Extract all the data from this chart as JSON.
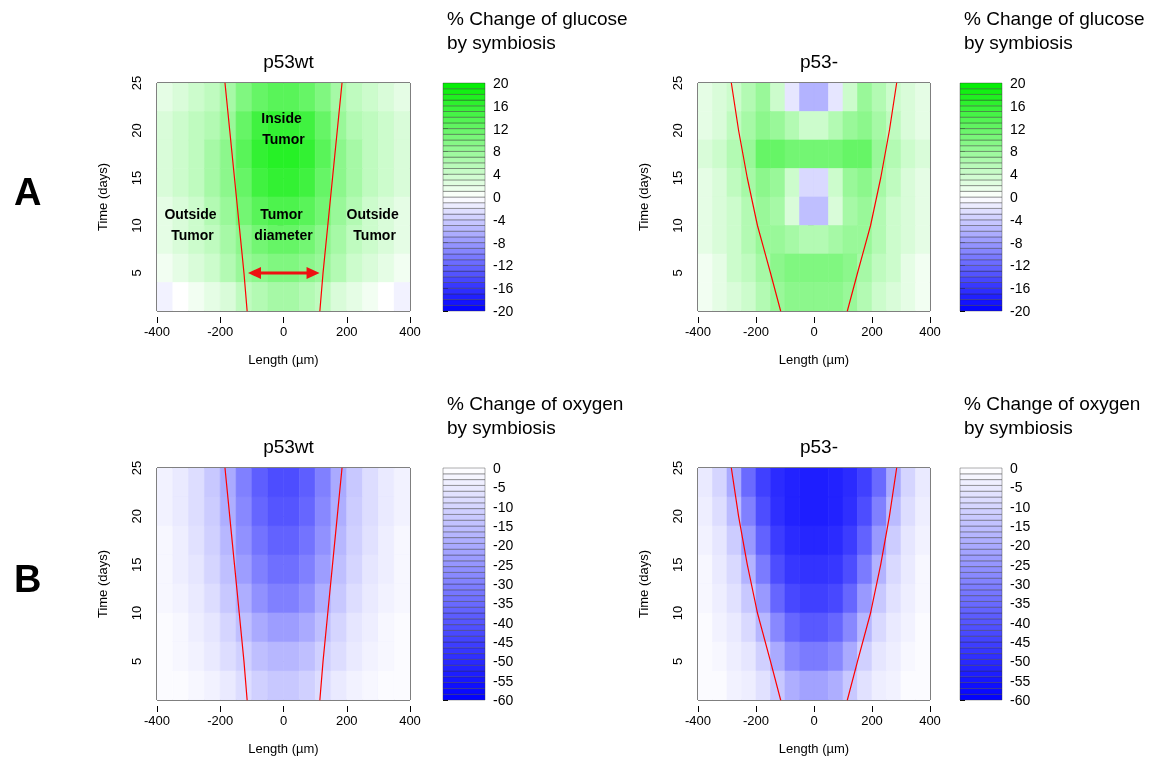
{
  "chart_data": [
    {
      "type": "heatmap",
      "title": "p53wt",
      "xlabel": "Length (µm)",
      "ylabel": "Time (days)",
      "clabel": "% Change of glucose by symbiosis",
      "x": [
        -375,
        -325,
        -275,
        -225,
        -175,
        -125,
        -75,
        -25,
        25,
        75,
        125,
        175,
        225,
        275,
        325,
        375
      ],
      "y": [
        23.5,
        20.5,
        17.5,
        14.5,
        11.5,
        8.5,
        5.5,
        2.5
      ],
      "cells": [
        [
          2,
          3,
          4,
          5,
          7,
          10,
          12,
          13,
          13,
          12,
          10,
          7,
          5,
          4,
          3,
          2
        ],
        [
          3,
          4,
          5,
          6,
          8,
          12,
          15,
          16,
          16,
          15,
          12,
          8,
          6,
          5,
          4,
          3
        ],
        [
          3,
          4,
          5,
          7,
          9,
          13,
          16,
          17,
          17,
          16,
          13,
          9,
          7,
          5,
          4,
          3
        ],
        [
          3,
          4,
          5,
          7,
          9,
          12,
          15,
          16,
          16,
          15,
          12,
          9,
          7,
          5,
          4,
          3
        ],
        [
          2,
          3,
          4,
          6,
          8,
          11,
          13,
          14,
          14,
          13,
          11,
          8,
          6,
          4,
          3,
          2
        ],
        [
          2,
          3,
          4,
          5,
          7,
          9,
          11,
          12,
          12,
          11,
          9,
          7,
          5,
          4,
          3,
          2
        ],
        [
          1,
          2,
          3,
          4,
          6,
          8,
          9,
          10,
          10,
          9,
          8,
          6,
          4,
          3,
          2,
          1
        ],
        [
          -1,
          0,
          1,
          2,
          3,
          5,
          6,
          7,
          7,
          6,
          5,
          3,
          2,
          1,
          0,
          -1
        ]
      ],
      "xlim": [
        -400,
        400
      ],
      "ylim": [
        1,
        25
      ],
      "xticks": [
        -400,
        -200,
        0,
        200,
        400
      ],
      "yticks": [
        5,
        10,
        15,
        20,
        25
      ],
      "clim": [
        -20,
        20
      ],
      "cticks": [
        20,
        16,
        12,
        8,
        4,
        0,
        -4,
        -8,
        -12,
        -16,
        -20
      ],
      "colors": [
        "#0000ff",
        "#ffffff",
        "#00ee00"
      ],
      "series": [
        {
          "type": "line",
          "color": "#ff0000",
          "x": [
            -115,
            -125,
            -140,
            -155,
            -170,
            -185
          ],
          "values": [
            1,
            5,
            10,
            15,
            20,
            25
          ]
        },
        {
          "type": "line",
          "color": "#ff0000",
          "x": [
            115,
            125,
            140,
            155,
            170,
            185
          ],
          "values": [
            1,
            5,
            10,
            15,
            20,
            25
          ]
        }
      ],
      "annotations": [
        "A",
        "Inside Tumor",
        "Outside Tumor",
        "Tumor diameter",
        "Outside Tumor"
      ]
    },
    {
      "type": "heatmap",
      "title": "p53-",
      "xlabel": "Length (µm)",
      "ylabel": "Time (days)",
      "clabel": "% Change of glucose by symbiosis",
      "x": [
        -375,
        -325,
        -275,
        -225,
        -175,
        -125,
        -75,
        -25,
        25,
        75,
        125,
        175,
        225,
        275,
        325,
        375
      ],
      "y": [
        23.5,
        20.5,
        17.5,
        14.5,
        11.5,
        8.5,
        5.5,
        2.5
      ],
      "cells": [
        [
          2,
          3,
          4,
          6,
          8,
          4,
          -2,
          -6,
          -6,
          -2,
          4,
          8,
          6,
          4,
          3,
          2
        ],
        [
          2,
          3,
          5,
          7,
          9,
          8,
          6,
          4,
          4,
          6,
          8,
          9,
          7,
          5,
          3,
          2
        ],
        [
          3,
          4,
          6,
          8,
          12,
          12,
          11,
          11,
          11,
          11,
          12,
          12,
          8,
          6,
          4,
          3
        ],
        [
          2,
          3,
          5,
          7,
          9,
          8,
          4,
          -3,
          -3,
          4,
          8,
          9,
          7,
          5,
          3,
          2
        ],
        [
          2,
          3,
          4,
          6,
          8,
          7,
          3,
          -5,
          -5,
          3,
          7,
          8,
          6,
          4,
          3,
          2
        ],
        [
          2,
          3,
          4,
          6,
          8,
          8,
          7,
          6,
          6,
          7,
          8,
          8,
          6,
          4,
          3,
          2
        ],
        [
          1,
          2,
          4,
          5,
          7,
          9,
          10,
          10,
          10,
          10,
          9,
          7,
          5,
          4,
          2,
          1
        ],
        [
          1,
          2,
          3,
          4,
          6,
          8,
          9,
          9,
          9,
          9,
          8,
          6,
          4,
          3,
          2,
          1
        ]
      ],
      "xlim": [
        -400,
        400
      ],
      "ylim": [
        1,
        25
      ],
      "xticks": [
        -400,
        -200,
        0,
        200,
        400
      ],
      "yticks": [
        5,
        10,
        15,
        20,
        25
      ],
      "clim": [
        -20,
        20
      ],
      "cticks": [
        20,
        16,
        12,
        8,
        4,
        0,
        -4,
        -8,
        -12,
        -16,
        -20
      ],
      "colors": [
        "#0000ff",
        "#ffffff",
        "#00ee00"
      ],
      "series": [
        {
          "type": "line",
          "color": "#ff0000",
          "x": [
            -115,
            -150,
            -195,
            -230,
            -260,
            -285
          ],
          "values": [
            1,
            5,
            10,
            15,
            20,
            25
          ]
        },
        {
          "type": "line",
          "color": "#ff0000",
          "x": [
            115,
            150,
            195,
            230,
            260,
            285
          ],
          "values": [
            1,
            5,
            10,
            15,
            20,
            25
          ]
        }
      ]
    },
    {
      "type": "heatmap",
      "title": "p53wt",
      "xlabel": "Length (µm)",
      "ylabel": "Time (days)",
      "clabel": "% Change of oxygen by symbiosis",
      "x": [
        -375,
        -325,
        -275,
        -225,
        -175,
        -125,
        -75,
        -25,
        25,
        75,
        125,
        175,
        225,
        275,
        325,
        375
      ],
      "y": [
        23.5,
        20.5,
        17.5,
        14.5,
        11.5,
        8.5,
        5.5,
        2.5
      ],
      "cells": [
        [
          -3,
          -5,
          -8,
          -13,
          -20,
          -30,
          -38,
          -42,
          -42,
          -38,
          -30,
          -20,
          -13,
          -8,
          -5,
          -3
        ],
        [
          -3,
          -5,
          -8,
          -12,
          -19,
          -28,
          -36,
          -40,
          -40,
          -36,
          -28,
          -19,
          -12,
          -8,
          -5,
          -3
        ],
        [
          -2,
          -4,
          -7,
          -11,
          -17,
          -26,
          -33,
          -37,
          -37,
          -33,
          -26,
          -17,
          -11,
          -7,
          -4,
          -2
        ],
        [
          -2,
          -4,
          -6,
          -10,
          -15,
          -23,
          -30,
          -34,
          -34,
          -30,
          -23,
          -15,
          -10,
          -6,
          -4,
          -2
        ],
        [
          -2,
          -3,
          -5,
          -8,
          -13,
          -19,
          -26,
          -30,
          -30,
          -26,
          -19,
          -13,
          -8,
          -5,
          -3,
          -2
        ],
        [
          -1,
          -2,
          -4,
          -6,
          -10,
          -15,
          -20,
          -23,
          -23,
          -20,
          -15,
          -10,
          -6,
          -4,
          -2,
          -1
        ],
        [
          -1,
          -2,
          -3,
          -5,
          -8,
          -11,
          -15,
          -17,
          -17,
          -15,
          -11,
          -8,
          -5,
          -3,
          -2,
          -1
        ],
        [
          -1,
          -1,
          -2,
          -3,
          -5,
          -8,
          -11,
          -13,
          -13,
          -11,
          -8,
          -5,
          -3,
          -2,
          -1,
          -1
        ]
      ],
      "xlim": [
        -400,
        400
      ],
      "ylim": [
        1,
        25
      ],
      "xticks": [
        -400,
        -200,
        0,
        200,
        400
      ],
      "yticks": [
        5,
        10,
        15,
        20,
        25
      ],
      "clim": [
        -60,
        0
      ],
      "cticks": [
        0,
        -5,
        -10,
        -15,
        -20,
        -25,
        -30,
        -35,
        -40,
        -45,
        -50,
        -55,
        -60
      ],
      "colors": [
        "#0000ff",
        "#ffffff"
      ],
      "series": [
        {
          "type": "line",
          "color": "#ff0000",
          "x": [
            -115,
            -125,
            -140,
            -155,
            -170,
            -185
          ],
          "values": [
            1,
            5,
            10,
            15,
            20,
            25
          ]
        },
        {
          "type": "line",
          "color": "#ff0000",
          "x": [
            115,
            125,
            140,
            155,
            170,
            185
          ],
          "values": [
            1,
            5,
            10,
            15,
            20,
            25
          ]
        }
      ],
      "annotations": [
        "B"
      ]
    },
    {
      "type": "heatmap",
      "title": "p53-",
      "xlabel": "Length (µm)",
      "ylabel": "Time (days)",
      "clabel": "% Change of oxygen by symbiosis",
      "x": [
        -375,
        -325,
        -275,
        -225,
        -175,
        -125,
        -75,
        -25,
        25,
        75,
        125,
        175,
        225,
        275,
        325,
        375
      ],
      "y": [
        23.5,
        20.5,
        17.5,
        14.5,
        11.5,
        8.5,
        5.5,
        2.5
      ],
      "cells": [
        [
          -5,
          -10,
          -20,
          -35,
          -45,
          -50,
          -52,
          -53,
          -53,
          -52,
          -50,
          -45,
          -35,
          -20,
          -10,
          -5
        ],
        [
          -4,
          -8,
          -16,
          -30,
          -42,
          -49,
          -52,
          -53,
          -53,
          -52,
          -49,
          -42,
          -30,
          -16,
          -8,
          -4
        ],
        [
          -3,
          -6,
          -12,
          -24,
          -37,
          -46,
          -50,
          -51,
          -51,
          -50,
          -46,
          -37,
          -24,
          -12,
          -6,
          -3
        ],
        [
          -2,
          -5,
          -9,
          -18,
          -31,
          -42,
          -47,
          -48,
          -48,
          -47,
          -42,
          -31,
          -18,
          -9,
          -5,
          -2
        ],
        [
          -2,
          -4,
          -7,
          -13,
          -24,
          -36,
          -43,
          -45,
          -45,
          -43,
          -36,
          -24,
          -13,
          -7,
          -4,
          -2
        ],
        [
          -1,
          -3,
          -5,
          -9,
          -17,
          -28,
          -36,
          -39,
          -39,
          -36,
          -28,
          -17,
          -9,
          -5,
          -3,
          -1
        ],
        [
          -1,
          -2,
          -4,
          -6,
          -11,
          -20,
          -28,
          -31,
          -31,
          -28,
          -20,
          -11,
          -6,
          -4,
          -2,
          -1
        ],
        [
          -1,
          -1,
          -3,
          -4,
          -7,
          -13,
          -19,
          -22,
          -22,
          -19,
          -13,
          -7,
          -4,
          -3,
          -1,
          -1
        ]
      ],
      "xlim": [
        -400,
        400
      ],
      "ylim": [
        1,
        25
      ],
      "xticks": [
        -400,
        -200,
        0,
        200,
        400
      ],
      "yticks": [
        5,
        10,
        15,
        20,
        25
      ],
      "clim": [
        -60,
        0
      ],
      "cticks": [
        0,
        -5,
        -10,
        -15,
        -20,
        -25,
        -30,
        -35,
        -40,
        -45,
        -50,
        -55,
        -60
      ],
      "colors": [
        "#0000ff",
        "#ffffff"
      ],
      "series": [
        {
          "type": "line",
          "color": "#ff0000",
          "x": [
            -115,
            -150,
            -195,
            -230,
            -260,
            -285
          ],
          "values": [
            1,
            5,
            10,
            15,
            20,
            25
          ]
        },
        {
          "type": "line",
          "color": "#ff0000",
          "x": [
            115,
            150,
            195,
            230,
            260,
            285
          ],
          "values": [
            1,
            5,
            10,
            15,
            20,
            25
          ]
        }
      ]
    }
  ]
}
